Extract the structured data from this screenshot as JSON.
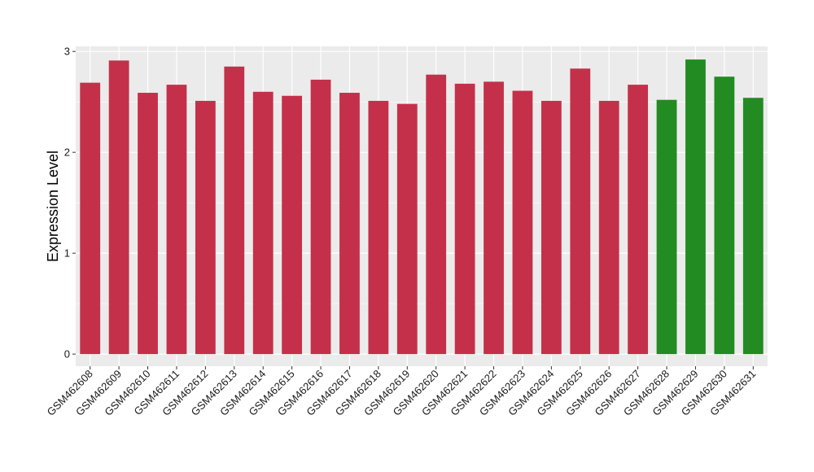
{
  "chart_data": {
    "type": "bar",
    "title": "",
    "xlabel": "",
    "ylabel": "Expression Level",
    "ylim": [
      -0.12,
      3.05
    ],
    "yticks": [
      0,
      1,
      2,
      3
    ],
    "grid": true,
    "legend": "none",
    "categories": [
      "GSM462608",
      "GSM462609",
      "GSM462610",
      "GSM462611",
      "GSM462612",
      "GSM462613",
      "GSM462614",
      "GSM462615",
      "GSM462616",
      "GSM462617",
      "GSM462618",
      "GSM462619",
      "GSM462620",
      "GSM462621",
      "GSM462622",
      "GSM462623",
      "GSM462624",
      "GSM462625",
      "GSM462626",
      "GSM462627",
      "GSM462628",
      "GSM462629",
      "GSM462630",
      "GSM462631"
    ],
    "values": [
      2.69,
      2.91,
      2.59,
      2.67,
      2.51,
      2.85,
      2.6,
      2.56,
      2.72,
      2.59,
      2.51,
      2.48,
      2.77,
      2.68,
      2.7,
      2.61,
      2.51,
      2.83,
      2.51,
      2.67,
      2.52,
      2.92,
      2.75,
      2.54
    ],
    "bar_colors": [
      "#c4304a",
      "#c4304a",
      "#c4304a",
      "#c4304a",
      "#c4304a",
      "#c4304a",
      "#c4304a",
      "#c4304a",
      "#c4304a",
      "#c4304a",
      "#c4304a",
      "#c4304a",
      "#c4304a",
      "#c4304a",
      "#c4304a",
      "#c4304a",
      "#c4304a",
      "#c4304a",
      "#c4304a",
      "#c4304a",
      "#228b22",
      "#228b22",
      "#228b22",
      "#228b22"
    ],
    "panel_background": "#ebebeb",
    "grid_color": "#ffffff"
  }
}
